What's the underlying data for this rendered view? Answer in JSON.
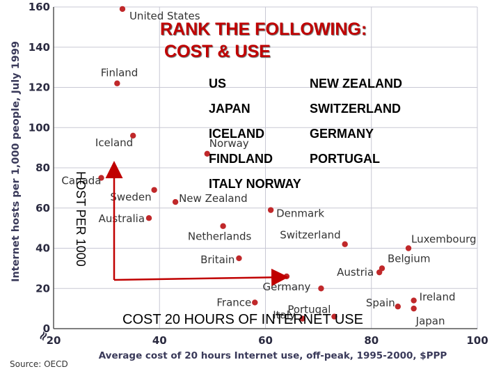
{
  "slide": {
    "title_line1": "RANK THE FOLLOWING:",
    "title_line2": "COST & USE",
    "countries": [
      "US",
      "NEW ZEALAND",
      "JAPAN",
      "SWITZERLAND",
      "ICELAND",
      "GERMANY",
      "FINDLAND",
      "PORTUGAL",
      "ITALY  NORWAY"
    ],
    "arrow_label_x": "COST 20 HOURS OF INTERNET USE",
    "arrow_label_y": "HOST PER 1000",
    "colors": {
      "title": "#c00000",
      "points": "#c0282a",
      "arrow": "#c00000"
    }
  },
  "chart_data": {
    "type": "scatter",
    "xlabel": "Average cost of 20 hours Internet use, off-peak, 1995-2000, $PPP",
    "ylabel": "Internet hosts per 1,000 people, July 1999",
    "source": "Source: OECD",
    "xlim": [
      20,
      100
    ],
    "ylim": [
      0,
      160
    ],
    "x_ticks": [
      20,
      40,
      60,
      80,
      100
    ],
    "y_ticks": [
      0,
      20,
      40,
      60,
      80,
      100,
      120,
      140,
      160
    ],
    "axis_break_mark": "≈",
    "grid": true,
    "points": [
      {
        "label": "United States",
        "x": 33,
        "y": 159
      },
      {
        "label": "Finland",
        "x": 32,
        "y": 122
      },
      {
        "label": "Iceland",
        "x": 35,
        "y": 96
      },
      {
        "label": "Norway",
        "x": 49,
        "y": 87
      },
      {
        "label": "Canada",
        "x": 29,
        "y": 75
      },
      {
        "label": "Sweden",
        "x": 39,
        "y": 69
      },
      {
        "label": "New Zealand",
        "x": 43,
        "y": 63
      },
      {
        "label": "Denmark",
        "x": 61,
        "y": 59
      },
      {
        "label": "Australia",
        "x": 38,
        "y": 55
      },
      {
        "label": "Netherlands",
        "x": 52,
        "y": 51
      },
      {
        "label": "Switzerland",
        "x": 75,
        "y": 42
      },
      {
        "label": "Luxembourg",
        "x": 87,
        "y": 40
      },
      {
        "label": "Britain",
        "x": 55,
        "y": 35
      },
      {
        "label": "Belgium",
        "x": 82,
        "y": 30
      },
      {
        "label": "Austria",
        "x": 81.5,
        "y": 28
      },
      {
        "label": "Germany",
        "x": 64,
        "y": 26
      },
      {
        "label": "",
        "x": 70.5,
        "y": 20
      },
      {
        "label": "France",
        "x": 58,
        "y": 13
      },
      {
        "label": "Ireland",
        "x": 88,
        "y": 14
      },
      {
        "label": "Spain",
        "x": 85,
        "y": 11
      },
      {
        "label": "Japan",
        "x": 88,
        "y": 10
      },
      {
        "label": "Portugal",
        "x": 73,
        "y": 6
      },
      {
        "label": "Italy",
        "x": 67,
        "y": 5
      }
    ]
  }
}
